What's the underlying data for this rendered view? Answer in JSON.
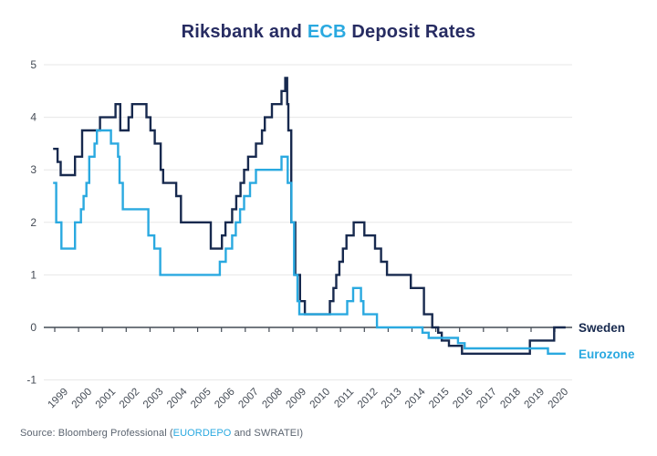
{
  "title": {
    "part1": "Riksbank and ",
    "part2": "ECB",
    "part3": " Deposit Rates"
  },
  "source": {
    "part1": "Source: Bloomberg Professional (",
    "link": "EUORDEPO",
    "part2": " and SWRATEI)"
  },
  "colors": {
    "sweden_line": "#17294e",
    "eurozone_line": "#2aa9e0",
    "title_navy": "#272c62",
    "title_blue": "#2aa9e0",
    "axis_text": "#444b55",
    "axis_line": "#444b55",
    "gridline": "#e7e7e7",
    "source_gray": "#5b6470"
  },
  "chart_data": {
    "type": "line",
    "step": true,
    "title": "Riksbank and ECB Deposit Rates",
    "xlabel": "",
    "ylabel": "",
    "xlim": [
      1998.9,
      2020.55
    ],
    "ylim": [
      -1,
      5
    ],
    "grid": "horizontal",
    "legend_position": "right-end-of-lines",
    "yticks": [
      -1,
      0,
      1,
      2,
      3,
      4,
      5
    ],
    "xticks": [
      1999,
      2000,
      2001,
      2002,
      2003,
      2004,
      2005,
      2006,
      2007,
      2008,
      2009,
      2010,
      2011,
      2012,
      2013,
      2014,
      2015,
      2016,
      2017,
      2018,
      2019,
      2020
    ],
    "xtick_labels": [
      "1999",
      "2000",
      "2001",
      "2002",
      "2003",
      "2004",
      "2005",
      "2006",
      "2007",
      "2008",
      "2009",
      "2010",
      "2011",
      "2012",
      "2013",
      "2014",
      "2015",
      "2016",
      "2017",
      "2018",
      "2019",
      "2020"
    ],
    "series": [
      {
        "name": "Sweden",
        "color": "#17294e",
        "points": [
          [
            1998.93,
            3.4
          ],
          [
            1999.12,
            3.15
          ],
          [
            1999.25,
            2.9
          ],
          [
            1999.85,
            3.25
          ],
          [
            2000.15,
            3.75
          ],
          [
            2000.9,
            4.0
          ],
          [
            2001.55,
            4.25
          ],
          [
            2001.75,
            3.75
          ],
          [
            2002.1,
            4.0
          ],
          [
            2002.25,
            4.25
          ],
          [
            2002.85,
            4.0
          ],
          [
            2003.02,
            3.75
          ],
          [
            2003.2,
            3.5
          ],
          [
            2003.45,
            3.0
          ],
          [
            2003.55,
            2.75
          ],
          [
            2004.1,
            2.5
          ],
          [
            2004.3,
            2.0
          ],
          [
            2005.55,
            1.5
          ],
          [
            2006.02,
            1.75
          ],
          [
            2006.17,
            2.0
          ],
          [
            2006.45,
            2.25
          ],
          [
            2006.62,
            2.5
          ],
          [
            2006.8,
            2.75
          ],
          [
            2006.95,
            3.0
          ],
          [
            2007.12,
            3.25
          ],
          [
            2007.45,
            3.5
          ],
          [
            2007.7,
            3.75
          ],
          [
            2007.82,
            4.0
          ],
          [
            2008.12,
            4.25
          ],
          [
            2008.52,
            4.5
          ],
          [
            2008.68,
            4.75
          ],
          [
            2008.76,
            4.25
          ],
          [
            2008.81,
            3.75
          ],
          [
            2008.93,
            2.0
          ],
          [
            2009.1,
            1.0
          ],
          [
            2009.3,
            0.5
          ],
          [
            2009.5,
            0.25
          ],
          [
            2010.55,
            0.5
          ],
          [
            2010.7,
            0.75
          ],
          [
            2010.82,
            1.0
          ],
          [
            2010.95,
            1.25
          ],
          [
            2011.1,
            1.5
          ],
          [
            2011.25,
            1.75
          ],
          [
            2011.55,
            2.0
          ],
          [
            2012.0,
            1.75
          ],
          [
            2012.45,
            1.5
          ],
          [
            2012.7,
            1.25
          ],
          [
            2012.95,
            1.0
          ],
          [
            2013.95,
            0.75
          ],
          [
            2014.5,
            0.25
          ],
          [
            2014.85,
            0.0
          ],
          [
            2015.1,
            -0.1
          ],
          [
            2015.25,
            -0.25
          ],
          [
            2015.55,
            -0.35
          ],
          [
            2016.1,
            -0.5
          ],
          [
            2018.95,
            -0.25
          ],
          [
            2019.97,
            0.0
          ],
          [
            2020.45,
            0.0
          ]
        ]
      },
      {
        "name": "Eurozone",
        "color": "#2aa9e0",
        "points": [
          [
            1998.93,
            2.75
          ],
          [
            1999.06,
            2.0
          ],
          [
            1999.28,
            1.5
          ],
          [
            1999.85,
            2.0
          ],
          [
            2000.1,
            2.25
          ],
          [
            2000.21,
            2.5
          ],
          [
            2000.33,
            2.75
          ],
          [
            2000.45,
            3.25
          ],
          [
            2000.67,
            3.5
          ],
          [
            2000.77,
            3.75
          ],
          [
            2001.36,
            3.5
          ],
          [
            2001.66,
            3.25
          ],
          [
            2001.72,
            2.75
          ],
          [
            2001.86,
            2.25
          ],
          [
            2002.93,
            1.75
          ],
          [
            2003.18,
            1.5
          ],
          [
            2003.43,
            1.0
          ],
          [
            2005.93,
            1.25
          ],
          [
            2006.18,
            1.5
          ],
          [
            2006.45,
            1.75
          ],
          [
            2006.6,
            2.0
          ],
          [
            2006.78,
            2.25
          ],
          [
            2006.95,
            2.5
          ],
          [
            2007.2,
            2.75
          ],
          [
            2007.45,
            3.0
          ],
          [
            2008.52,
            3.25
          ],
          [
            2008.78,
            2.75
          ],
          [
            2008.94,
            2.0
          ],
          [
            2009.05,
            1.0
          ],
          [
            2009.19,
            0.5
          ],
          [
            2009.27,
            0.25
          ],
          [
            2011.28,
            0.5
          ],
          [
            2011.53,
            0.75
          ],
          [
            2011.86,
            0.5
          ],
          [
            2011.96,
            0.25
          ],
          [
            2012.53,
            0.0
          ],
          [
            2014.44,
            -0.1
          ],
          [
            2014.7,
            -0.2
          ],
          [
            2015.93,
            -0.3
          ],
          [
            2016.21,
            -0.4
          ],
          [
            2019.71,
            -0.5
          ],
          [
            2020.45,
            -0.5
          ]
        ]
      }
    ]
  }
}
